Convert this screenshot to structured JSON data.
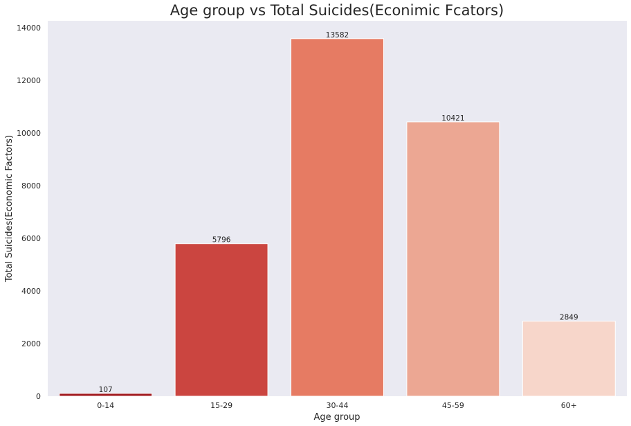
{
  "chart_data": {
    "type": "bar",
    "title": "Age group vs Total Suicides(Econimic Fcators)",
    "xlabel": "Age group",
    "ylabel": "Total Suicides(Economic Factors)",
    "categories": [
      "0-14",
      "15-29",
      "30-44",
      "45-59",
      "60+"
    ],
    "values": [
      107,
      5796,
      13582,
      10421,
      2849
    ],
    "data_labels": [
      "107",
      "5796",
      "13582",
      "10421",
      "2849"
    ],
    "yticks": [
      0,
      2000,
      4000,
      6000,
      8000,
      10000,
      12000,
      14000
    ],
    "ylim": [
      0,
      14261
    ],
    "grid": false,
    "colors": [
      "#a11a1f",
      "#cb4540",
      "#e67b63",
      "#eca793",
      "#f7d6ca"
    ],
    "background": "#eaeaf2"
  }
}
